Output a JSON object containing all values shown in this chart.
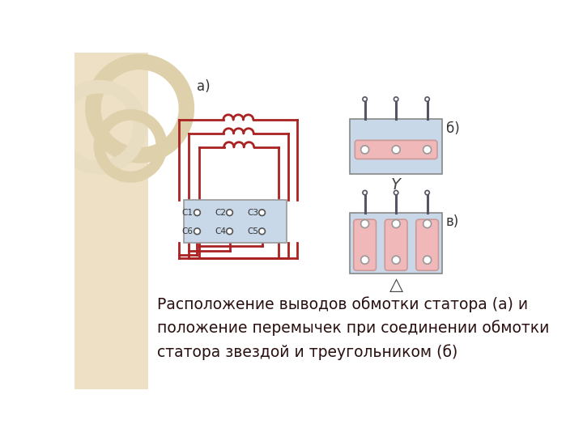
{
  "slide_bg": "#ffffff",
  "left_panel_color": "#ede0c4",
  "red_color": "#aa2222",
  "terminal_bg": "#c8d8e8",
  "pink_color": "#f0b8b8",
  "pin_color": "#555566",
  "label_a": "а)",
  "label_b": "б)",
  "label_v": "в)",
  "star_symbol": "Y",
  "triangle_symbol": "△",
  "caption": "Расположение выводов обмотки статора (а) и\nположение перемычек при соединении обмотки\nстатора звездой и треугольником (б)",
  "caption_fontsize": 13.5,
  "caption_color": "#2a1010",
  "circle_color1": "#ddd0aa",
  "circle_color2": "#e8ddc0"
}
